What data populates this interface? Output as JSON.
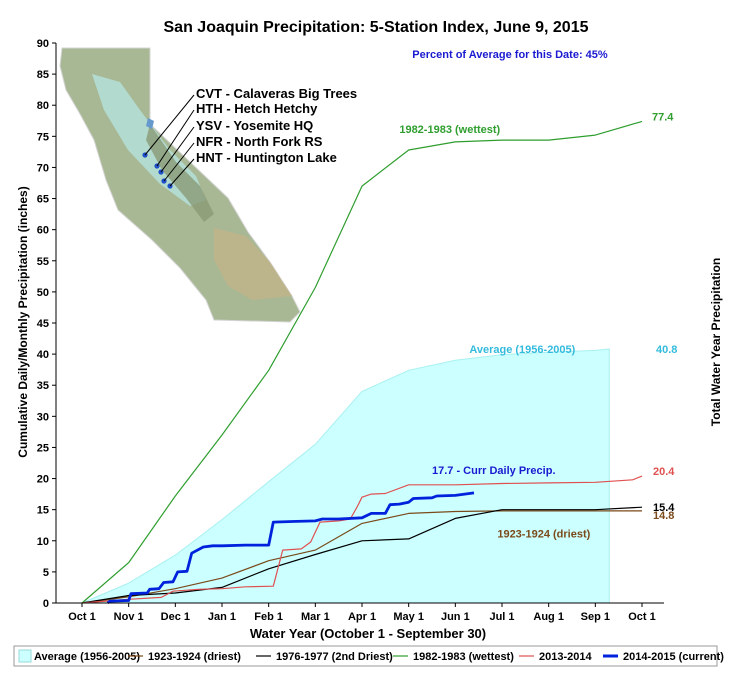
{
  "chart_data": {
    "type": "line",
    "title": "San Joaquin Precipitation: 5-Station Index, June 9, 2015",
    "xlabel": "Water Year (October 1 - September 30)",
    "ylabel": "Cumulative Daily/Monthly Precipitation (inches)",
    "y2label": "Total Water Year Precipitation",
    "x_ticks": [
      "Oct 1",
      "Nov 1",
      "Dec 1",
      "Jan 1",
      "Feb 1",
      "Mar 1",
      "Apr 1",
      "May 1",
      "Jun 1",
      "Jul 1",
      "Aug 1",
      "Sep 1",
      "Oct 1"
    ],
    "ylim": [
      0,
      90
    ],
    "y_ticks": [
      0,
      5,
      10,
      15,
      20,
      25,
      30,
      35,
      40,
      45,
      50,
      55,
      60,
      65,
      70,
      75,
      80,
      85,
      90
    ],
    "x_unit": "months since Oct 1",
    "grid": false,
    "percent_text": "Percent of Average for this Date: 45%",
    "stations": [
      "CVT - Calaveras Big Trees",
      "HTH - Hetch Hetchy",
      "YSV - Yosemite HQ",
      "NFR - North Fork RS",
      "HNT - Huntington Lake"
    ],
    "series": [
      {
        "name": "Average (1956-2005)",
        "type": "area",
        "color": "#ccffff",
        "edge": "#a8f0f0",
        "x": [
          0,
          1,
          2,
          3,
          4,
          5,
          6,
          7,
          8,
          9,
          10,
          11,
          11.3,
          11.3
        ],
        "y": [
          0,
          3.2,
          7.7,
          13.4,
          19.5,
          25.5,
          34.0,
          37.4,
          39.0,
          39.9,
          40.3,
          40.6,
          40.8,
          0
        ]
      },
      {
        "name": "1923-1924 (driest)",
        "color": "#7a4a1a",
        "x": [
          0,
          1,
          2,
          3,
          4,
          5,
          6,
          7,
          8,
          9,
          10,
          11,
          12
        ],
        "y": [
          0,
          1.0,
          2.3,
          4.0,
          6.8,
          8.5,
          12.8,
          14.4,
          14.7,
          14.8,
          14.8,
          14.8,
          14.8
        ]
      },
      {
        "name": "1976-1977 (2nd Driest)",
        "color": "#000000",
        "x": [
          0,
          1,
          2,
          3,
          4,
          5,
          6,
          7,
          8,
          9,
          10,
          11,
          12
        ],
        "y": [
          0,
          1.2,
          1.6,
          2.5,
          5.5,
          7.8,
          10.0,
          10.3,
          13.6,
          15.0,
          15.0,
          15.0,
          15.4
        ]
      },
      {
        "name": "1982-1983 (wettest)",
        "color": "#2f9e2f",
        "x": [
          0,
          1,
          2,
          3,
          4,
          5,
          6,
          7,
          8,
          9,
          10,
          11,
          12
        ],
        "y": [
          0,
          6.5,
          17.2,
          27.0,
          37.4,
          50.7,
          67.0,
          72.8,
          74.1,
          74.4,
          74.4,
          75.2,
          77.4
        ]
      },
      {
        "name": "2013-2014",
        "color": "#e05050",
        "x": [
          0,
          1.0,
          1.7,
          1.95,
          2.5,
          3.0,
          3.5,
          4.1,
          4.3,
          4.7,
          4.9,
          5.1,
          5.5,
          5.75,
          5.9,
          6.0,
          6.2,
          6.5,
          7.0,
          7.5,
          8.0,
          9.0,
          10.0,
          11.0,
          11.8,
          12
        ],
        "y": [
          0,
          0.6,
          0.9,
          1.9,
          2.2,
          2.3,
          2.6,
          2.7,
          8.5,
          8.7,
          9.8,
          13.0,
          13.2,
          13.5,
          15.5,
          17.0,
          17.5,
          17.6,
          19.0,
          19.0,
          19.0,
          19.2,
          19.3,
          19.4,
          19.8,
          20.4
        ]
      },
      {
        "name": "2014-2015 (current)",
        "color": "#0022dd",
        "x": [
          0.55,
          0.6,
          1.0,
          1.05,
          1.4,
          1.45,
          1.65,
          1.75,
          1.95,
          2.05,
          2.25,
          2.35,
          2.6,
          2.8,
          3.0,
          3.5,
          4.0,
          4.1,
          4.5,
          5.0,
          5.15,
          5.5,
          6.0,
          6.2,
          6.5,
          6.6,
          6.8,
          7.0,
          7.1,
          7.5,
          7.6,
          8.0,
          8.2,
          8.4
        ],
        "y": [
          0,
          0.3,
          0.4,
          1.5,
          1.6,
          2.2,
          2.3,
          3.3,
          3.4,
          5.0,
          5.1,
          8.0,
          9.0,
          9.2,
          9.2,
          9.3,
          9.3,
          13.0,
          13.1,
          13.2,
          13.5,
          13.5,
          13.7,
          14.4,
          14.4,
          15.8,
          15.9,
          16.2,
          16.8,
          16.9,
          17.2,
          17.3,
          17.5,
          17.7
        ]
      }
    ],
    "annotations": [
      {
        "text": "Percent of Average for this Date: 45%",
        "color": "#1a1ad0"
      },
      {
        "text": "1982-1983 (wettest)",
        "color": "#2f9e2f",
        "x": 6.8,
        "y": 75.5
      },
      {
        "text": "77.4",
        "color": "#2f9e2f"
      },
      {
        "text": "Average (1956-2005)",
        "color": "#33bbdd",
        "x": 8.3,
        "y": 40.8
      },
      {
        "text": "40.8",
        "color": "#33bbdd"
      },
      {
        "text": "17.7  -  Curr Daily Precip.",
        "color": "#1a1ad0",
        "x": 7.5,
        "y": 20.7
      },
      {
        "text": "20.4",
        "color": "#e05050"
      },
      {
        "text": "15.4",
        "color": "#000000"
      },
      {
        "text": "14.8",
        "color": "#7a4a1a"
      },
      {
        "text": "1923-1924 (driest)",
        "color": "#7a4a1a",
        "x": 8.9,
        "y": 10.5
      }
    ],
    "legend": [
      {
        "label": "Average (1956-2005)",
        "color": "#ccffff",
        "kind": "area"
      },
      {
        "label": "1923-1924 (driest)",
        "color": "#7a4a1a",
        "kind": "line"
      },
      {
        "label": "1976-1977 (2nd Driest)",
        "color": "#000000",
        "kind": "line"
      },
      {
        "label": "1982-1983 (wettest)",
        "color": "#2f9e2f",
        "kind": "line"
      },
      {
        "label": "2013-2014",
        "color": "#e05050",
        "kind": "line"
      },
      {
        "label": "2014-2015 (current)",
        "color": "#0022dd",
        "kind": "line",
        "bold": true
      }
    ],
    "legend_position": "bottom"
  }
}
